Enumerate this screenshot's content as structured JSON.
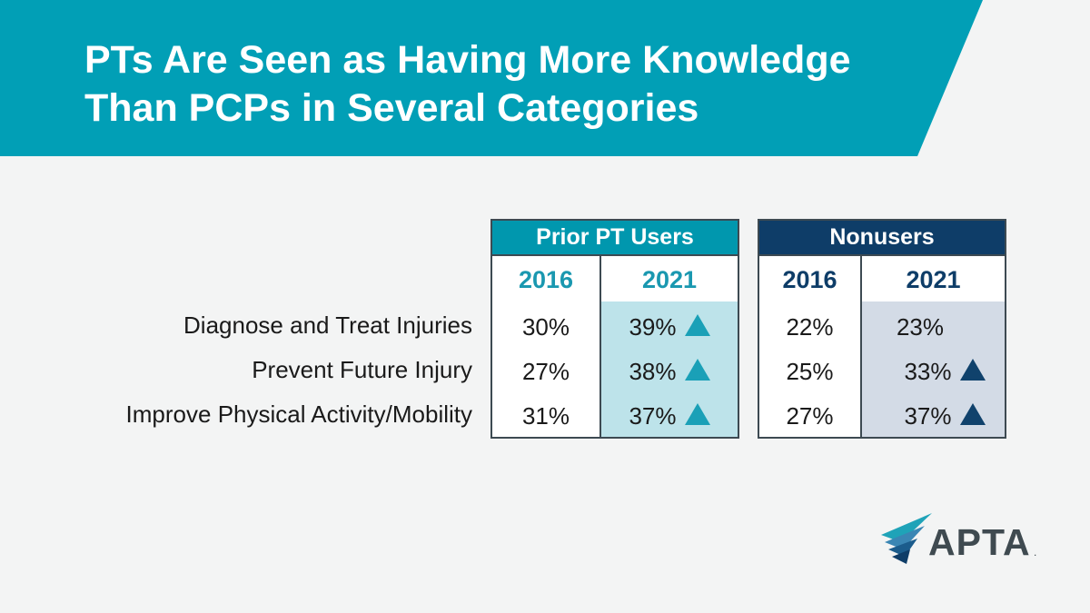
{
  "header": {
    "title_line1": "PTs Are Seen as Having More Knowledge",
    "title_line2": "Than PCPs in Several Categories"
  },
  "colors": {
    "banner": "#019fb6",
    "prior_header": "#0097ae",
    "prior_year_text": "#1a98b0",
    "prior_shade": "#bde3ea",
    "nonusers_header": "#0e3d68",
    "nonusers_year_text": "#0e3d68",
    "nonusers_shade": "#d3dbe6",
    "triangle_prior": "#1aa0b7",
    "triangle_nonusers": "#10426c"
  },
  "chart_data": {
    "type": "table",
    "title": "PTs Are Seen as Having More Knowledge Than PCPs in Several Categories",
    "groups": [
      {
        "name": "Prior PT Users",
        "years": [
          "2016",
          "2021"
        ],
        "rows": [
          {
            "2016": "30%",
            "2021": "39%",
            "increase_2021": true
          },
          {
            "2016": "27%",
            "2021": "38%",
            "increase_2021": true
          },
          {
            "2016": "31%",
            "2021": "37%",
            "increase_2021": true
          }
        ]
      },
      {
        "name": "Nonusers",
        "years": [
          "2016",
          "2021"
        ],
        "rows": [
          {
            "2016": "22%",
            "2021": "23%",
            "increase_2021": false
          },
          {
            "2016": "25%",
            "2021": "33%",
            "increase_2021": true
          },
          {
            "2016": "27%",
            "2021": "37%",
            "increase_2021": true
          }
        ]
      }
    ],
    "categories": [
      "Diagnose and Treat Injuries",
      "Prevent Future Injury",
      "Improve Physical Activity/Mobility"
    ],
    "series": [
      {
        "name": "Prior PT Users 2016",
        "values": [
          30,
          27,
          31
        ]
      },
      {
        "name": "Prior PT Users 2021",
        "values": [
          39,
          38,
          37
        ]
      },
      {
        "name": "Nonusers 2016",
        "values": [
          22,
          25,
          27
        ]
      },
      {
        "name": "Nonusers 2021",
        "values": [
          23,
          33,
          37
        ]
      }
    ],
    "indicator_icon": "up-triangle-icon"
  },
  "logo": {
    "text": "APTA",
    "mark": ".",
    "icon": "apta-wings-icon"
  }
}
